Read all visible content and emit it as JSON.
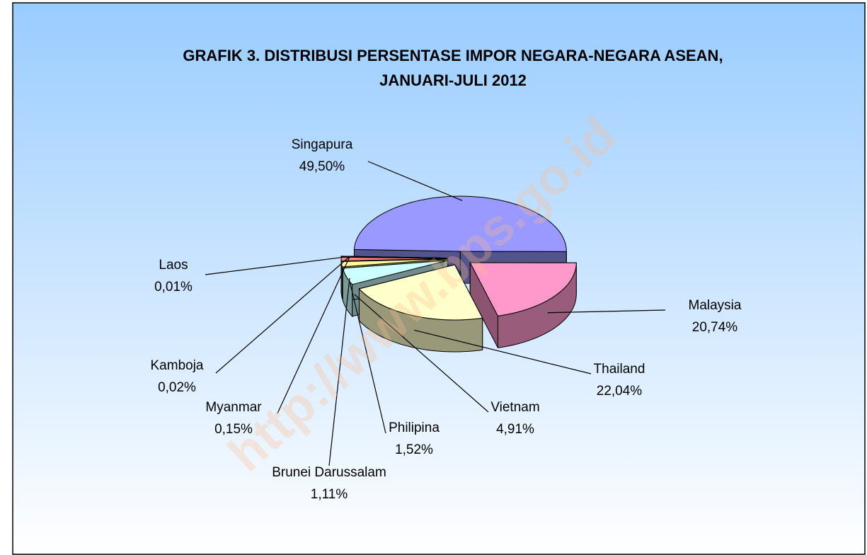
{
  "chart_data": {
    "type": "pie3d",
    "title": [
      "GRAFIK 3. DISTRIBUSI PERSENTASE IMPOR NEGARA-NEGARA ASEAN,",
      "JANUARI-JULI 2012"
    ],
    "watermark": "http://www.bps.go.id",
    "categories": [
      "Singapura",
      "Malaysia",
      "Thailand",
      "Vietnam",
      "Philipina",
      "Brunei Darussalam",
      "Myanmar",
      "Kamboja",
      "Laos"
    ],
    "values": [
      49.5,
      20.74,
      22.04,
      4.91,
      1.52,
      1.11,
      0.15,
      0.02,
      0.01
    ],
    "value_labels": [
      "49,50%",
      "20,74%",
      "22,04%",
      "4,91%",
      "1,52%",
      "1,11%",
      "0,15%",
      "0,02%",
      "0,01%"
    ],
    "colors": [
      "#9999ff",
      "#ff99cc",
      "#ffffcc",
      "#ccffff",
      "#ffff99",
      "#ff8080",
      "#669999",
      "#999933",
      "#996600"
    ]
  }
}
